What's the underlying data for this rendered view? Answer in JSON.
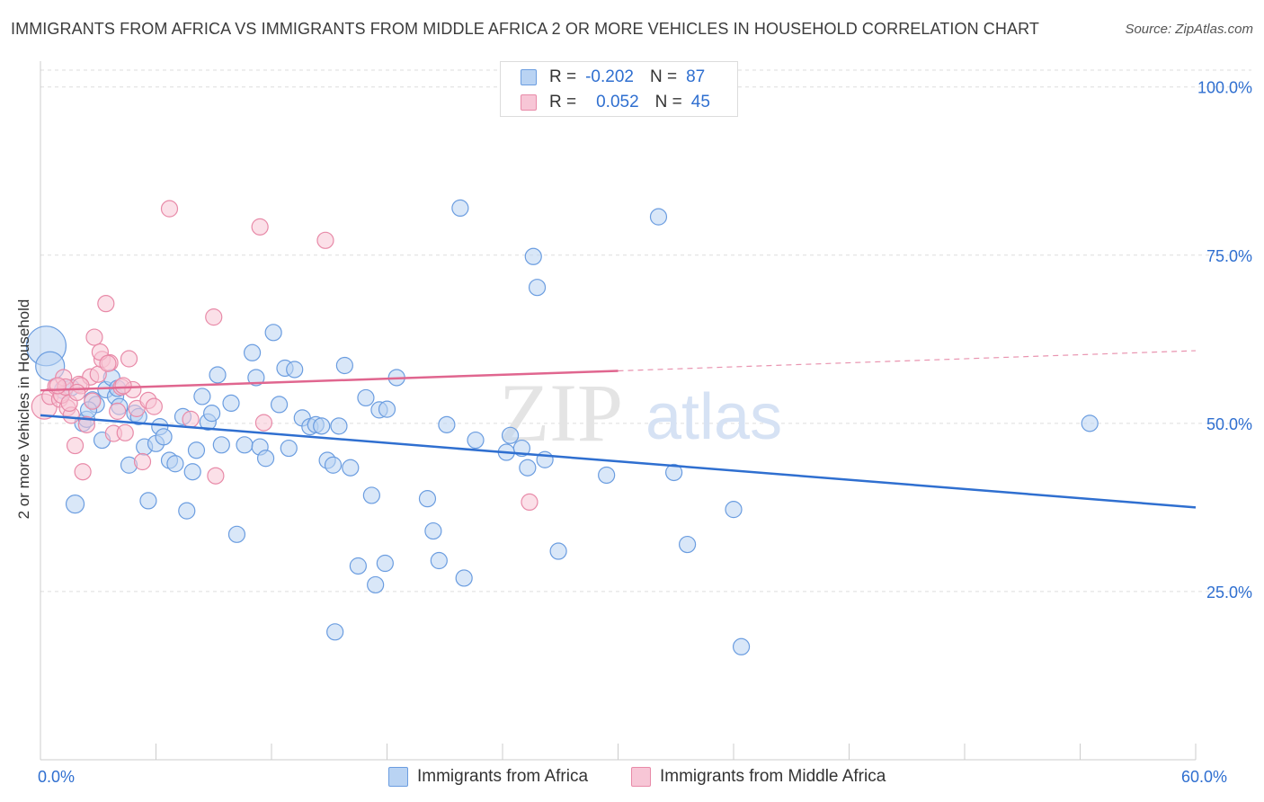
{
  "title": "IMMIGRANTS FROM AFRICA VS IMMIGRANTS FROM MIDDLE AFRICA 2 OR MORE VEHICLES IN HOUSEHOLD CORRELATION CHART",
  "source": "Source: ZipAtlas.com",
  "watermark": {
    "zip": "ZIP",
    "atlas": "atlas"
  },
  "stats": {
    "africa": {
      "r_label": "R =",
      "r_value": "-0.202",
      "n_label": "N =",
      "n_value": "87"
    },
    "middle_africa": {
      "r_label": "R =",
      "r_value": "0.052",
      "n_label": "N =",
      "n_value": "45"
    }
  },
  "legend": {
    "africa": "Immigrants from Africa",
    "middle_africa": "Immigrants from Middle Africa"
  },
  "colors": {
    "africa_fill": "#b9d3f3",
    "africa_stroke": "#6b9de0",
    "africa_line": "#2f6fd0",
    "middle_fill": "#f7c6d6",
    "middle_stroke": "#e88aa8",
    "middle_line": "#e0668f",
    "axis_text": "#2f6fd0",
    "grid": "#dddddd"
  },
  "chart_data": {
    "type": "scatter",
    "title": "IMMIGRANTS FROM AFRICA VS IMMIGRANTS FROM MIDDLE AFRICA 2 OR MORE VEHICLES IN HOUSEHOLD CORRELATION CHART",
    "xlabel": "",
    "ylabel": "2 or more Vehicles in Household",
    "xlim": [
      0,
      60
    ],
    "ylim": [
      0,
      102.5
    ],
    "x_tick_labels": [
      {
        "value": 0,
        "label": "0.0%"
      },
      {
        "value": 60,
        "label": "60.0%"
      }
    ],
    "y_tick_labels": [
      {
        "value": 25,
        "label": "25.0%"
      },
      {
        "value": 50,
        "label": "50.0%"
      },
      {
        "value": 75,
        "label": "75.0%"
      },
      {
        "value": 100,
        "label": "100.0%"
      }
    ],
    "grid": true,
    "series": [
      {
        "name": "Immigrants from Africa",
        "color": "#6b9de0",
        "trend": {
          "x": [
            0,
            60
          ],
          "y": [
            51.2,
            37.5
          ]
        },
        "points": [
          [
            0.3,
            61.5,
            22
          ],
          [
            0.5,
            58.5,
            16
          ],
          [
            1.2,
            55.0,
            10
          ],
          [
            1.8,
            38.0,
            10
          ],
          [
            2.2,
            50.0,
            9
          ],
          [
            2.4,
            50.6,
            9
          ],
          [
            2.7,
            53.5,
            9
          ],
          [
            2.9,
            52.8,
            9
          ],
          [
            3.2,
            47.5,
            9
          ],
          [
            3.4,
            55.0,
            9
          ],
          [
            3.7,
            56.8,
            9
          ],
          [
            3.9,
            54.0,
            9
          ],
          [
            4.1,
            52.5,
            9
          ],
          [
            4.6,
            43.8,
            9
          ],
          [
            4.9,
            51.5,
            9
          ],
          [
            5.1,
            51.0,
            9
          ],
          [
            5.4,
            46.5,
            9
          ],
          [
            5.6,
            38.5,
            9
          ],
          [
            6.0,
            47.0,
            9
          ],
          [
            6.2,
            49.5,
            9
          ],
          [
            6.4,
            48.0,
            9
          ],
          [
            6.7,
            44.5,
            9
          ],
          [
            7.0,
            44.0,
            9
          ],
          [
            7.4,
            51.0,
            9
          ],
          [
            7.6,
            37.0,
            9
          ],
          [
            7.9,
            42.8,
            9
          ],
          [
            8.1,
            46.0,
            9
          ],
          [
            8.4,
            54.0,
            9
          ],
          [
            8.7,
            50.2,
            9
          ],
          [
            8.9,
            51.5,
            9
          ],
          [
            9.2,
            57.2,
            9
          ],
          [
            9.4,
            46.8,
            9
          ],
          [
            9.9,
            53.0,
            9
          ],
          [
            10.2,
            33.5,
            9
          ],
          [
            10.6,
            46.8,
            9
          ],
          [
            11.0,
            60.5,
            9
          ],
          [
            11.2,
            56.8,
            9
          ],
          [
            11.4,
            46.5,
            9
          ],
          [
            11.7,
            44.8,
            9
          ],
          [
            12.1,
            63.5,
            9
          ],
          [
            12.4,
            52.8,
            9
          ],
          [
            12.7,
            58.2,
            9
          ],
          [
            12.9,
            46.3,
            9
          ],
          [
            13.2,
            58.0,
            9
          ],
          [
            13.6,
            50.8,
            9
          ],
          [
            14.0,
            49.5,
            9
          ],
          [
            14.3,
            49.8,
            9
          ],
          [
            14.6,
            49.6,
            9
          ],
          [
            14.9,
            44.5,
            9
          ],
          [
            15.2,
            43.8,
            9
          ],
          [
            15.5,
            49.6,
            9
          ],
          [
            15.8,
            58.6,
            9
          ],
          [
            16.1,
            43.4,
            9
          ],
          [
            16.5,
            28.8,
            9
          ],
          [
            16.9,
            53.8,
            9
          ],
          [
            17.2,
            39.3,
            9
          ],
          [
            17.4,
            26.0,
            9
          ],
          [
            17.6,
            52.0,
            9
          ],
          [
            18.0,
            52.1,
            9
          ],
          [
            18.5,
            56.8,
            9
          ],
          [
            15.3,
            19.0,
            9
          ],
          [
            17.9,
            29.2,
            9
          ],
          [
            20.1,
            38.8,
            9
          ],
          [
            20.4,
            34.0,
            9
          ],
          [
            20.7,
            29.6,
            9
          ],
          [
            21.1,
            49.8,
            9
          ],
          [
            21.8,
            82.0,
            9
          ],
          [
            22.0,
            27.0,
            9
          ],
          [
            22.6,
            47.5,
            9
          ],
          [
            24.2,
            45.7,
            9
          ],
          [
            24.4,
            48.2,
            9
          ],
          [
            25.0,
            46.3,
            9
          ],
          [
            25.3,
            43.4,
            9
          ],
          [
            25.6,
            74.8,
            9
          ],
          [
            25.8,
            70.2,
            9
          ],
          [
            26.2,
            44.6,
            9
          ],
          [
            26.9,
            31.0,
            9
          ],
          [
            29.4,
            42.3,
            9
          ],
          [
            32.1,
            80.7,
            9
          ],
          [
            32.9,
            42.7,
            9
          ],
          [
            33.6,
            32.0,
            9
          ],
          [
            36.0,
            37.2,
            9
          ],
          [
            36.4,
            16.8,
            9
          ],
          [
            54.5,
            50.0,
            9
          ],
          [
            1.6,
            55.3,
            9
          ],
          [
            2.5,
            52.0,
            9
          ],
          [
            4.0,
            55.2,
            9
          ]
        ]
      },
      {
        "name": "Immigrants from Middle Africa",
        "color": "#e88aa8",
        "trend": {
          "x": [
            0,
            30
          ],
          "y": [
            54.9,
            57.8
          ]
        },
        "trend_dashed": {
          "x": [
            30,
            60
          ],
          "y": [
            57.8,
            60.8
          ]
        },
        "points": [
          [
            0.2,
            52.5,
            14
          ],
          [
            0.5,
            54.0,
            9
          ],
          [
            0.8,
            55.5,
            9
          ],
          [
            1.0,
            53.6,
            9
          ],
          [
            1.2,
            56.8,
            9
          ],
          [
            1.4,
            52.3,
            9
          ],
          [
            1.6,
            51.2,
            9
          ],
          [
            1.8,
            46.7,
            9
          ],
          [
            2.0,
            55.8,
            9
          ],
          [
            2.2,
            42.8,
            9
          ],
          [
            2.4,
            49.8,
            9
          ],
          [
            2.6,
            56.9,
            9
          ],
          [
            2.8,
            62.8,
            9
          ],
          [
            3.0,
            57.3,
            9
          ],
          [
            3.2,
            59.5,
            9
          ],
          [
            3.4,
            67.8,
            9
          ],
          [
            3.6,
            59.0,
            9
          ],
          [
            3.8,
            48.5,
            9
          ],
          [
            4.0,
            51.8,
            9
          ],
          [
            4.2,
            55.4,
            9
          ],
          [
            4.4,
            48.6,
            9
          ],
          [
            4.6,
            59.6,
            9
          ],
          [
            4.8,
            55.0,
            9
          ],
          [
            5.0,
            52.2,
            9
          ],
          [
            5.3,
            44.3,
            9
          ],
          [
            5.6,
            53.4,
            9
          ],
          [
            5.9,
            52.5,
            9
          ],
          [
            6.7,
            81.9,
            9
          ],
          [
            7.8,
            50.6,
            9
          ],
          [
            9.0,
            65.8,
            9
          ],
          [
            9.1,
            42.2,
            9
          ],
          [
            11.4,
            79.2,
            9
          ],
          [
            11.6,
            50.1,
            9
          ],
          [
            14.8,
            77.2,
            9
          ],
          [
            25.4,
            38.3,
            9
          ],
          [
            1.1,
            54.2,
            9
          ],
          [
            1.3,
            55.4,
            9
          ],
          [
            0.9,
            55.6,
            9
          ],
          [
            2.1,
            55.6,
            9
          ],
          [
            3.1,
            60.6,
            9
          ],
          [
            3.5,
            58.9,
            9
          ],
          [
            1.5,
            53.0,
            9
          ],
          [
            2.7,
            53.3,
            9
          ],
          [
            1.9,
            54.6,
            9
          ],
          [
            4.3,
            55.6,
            9
          ]
        ]
      }
    ]
  }
}
